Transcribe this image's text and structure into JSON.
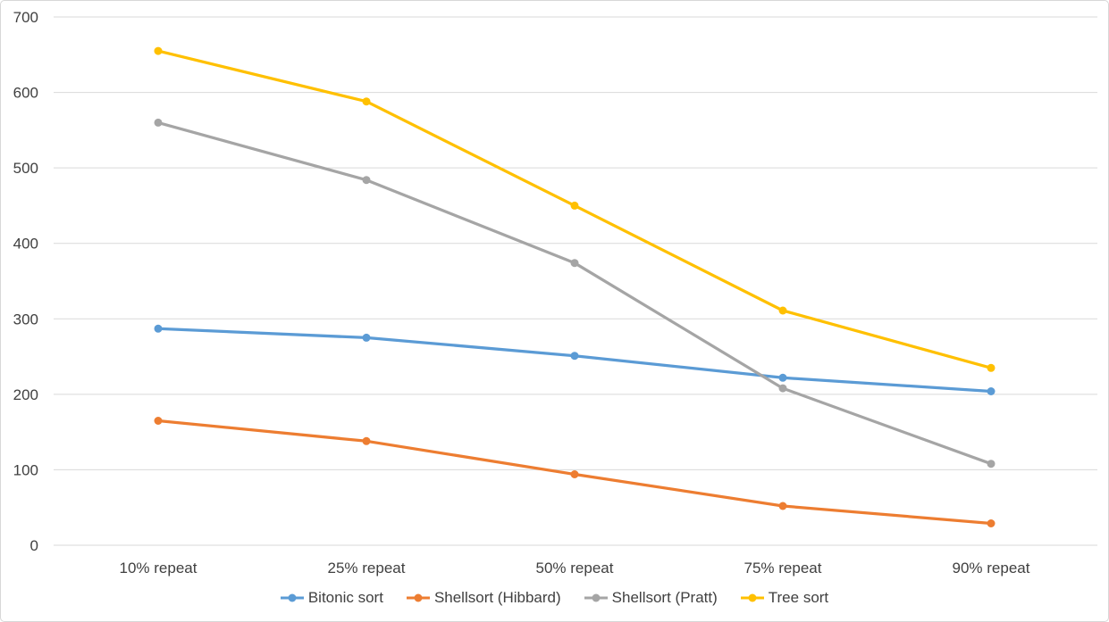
{
  "chart_data": {
    "type": "line",
    "title": "",
    "xlabel": "",
    "ylabel": "",
    "categories": [
      "10% repeat",
      "25% repeat",
      "50% repeat",
      "75% repeat",
      "90% repeat"
    ],
    "series": [
      {
        "name": "Bitonic sort",
        "color": "#5B9BD5",
        "values": [
          287,
          275,
          251,
          222,
          204
        ]
      },
      {
        "name": "Shellsort (Hibbard)",
        "color": "#ED7D31",
        "values": [
          165,
          138,
          94,
          52,
          29
        ]
      },
      {
        "name": "Shellsort (Pratt)",
        "color": "#A5A5A5",
        "values": [
          560,
          484,
          374,
          208,
          108
        ]
      },
      {
        "name": "Tree sort",
        "color": "#FFC000",
        "values": [
          655,
          588,
          450,
          311,
          235
        ]
      }
    ],
    "ylim": [
      0,
      700
    ],
    "yticks": [
      0,
      100,
      200,
      300,
      400,
      500,
      600,
      700
    ],
    "grid": true,
    "marker": "circle",
    "legend_position": "bottom"
  },
  "colors": {
    "gridline": "#d9d9d9",
    "axis_text": "#404040",
    "background": "#ffffff",
    "border": "#d7d7d7"
  }
}
